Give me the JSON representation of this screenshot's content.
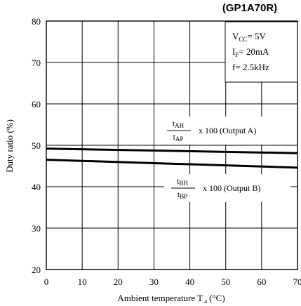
{
  "chart_data": {
    "type": "line",
    "part_label": "(GP1A70R)",
    "xlabel_main": "Ambient temperature T",
    "xlabel_sub": "a",
    "xlabel_unit": "(°C)",
    "ylabel": "Duty ratio (%)",
    "xlim": [
      0,
      70
    ],
    "ylim": [
      20,
      80
    ],
    "x_ticks": [
      0,
      10,
      20,
      30,
      40,
      50,
      60,
      70
    ],
    "y_ticks": [
      20,
      30,
      40,
      50,
      60,
      70,
      80
    ],
    "vertical_gridlines": [
      0,
      10,
      20,
      30,
      40,
      50,
      60,
      70
    ],
    "horizontal_gridlines": [
      20,
      30,
      40,
      50,
      60,
      70,
      80
    ],
    "grid": true,
    "conditions": {
      "vcc": {
        "main": "V",
        "sub": "CC",
        "rest": "= 5V"
      },
      "if": {
        "main": "I",
        "sub": "F",
        "rest": "= 20mA"
      },
      "f": {
        "text": "f= 2.5kHz"
      }
    },
    "series": [
      {
        "name": "Output A",
        "x": [
          0,
          70
        ],
        "y": [
          49.2,
          48.1
        ],
        "label": {
          "num_main": "t",
          "num_sub": "AH",
          "den_main": "t",
          "den_sub": "AP",
          "suffix": "x 100 (Output A)"
        }
      },
      {
        "name": "Output B",
        "x": [
          0,
          70
        ],
        "y": [
          46.5,
          44.6
        ],
        "label": {
          "num_main": "t",
          "num_sub": "BH",
          "den_main": "t",
          "den_sub": "BP",
          "suffix": "x 100 (Output B)"
        }
      }
    ],
    "colors": {
      "line": "#000000",
      "grid": "#000000",
      "background": "#ffffff"
    }
  }
}
